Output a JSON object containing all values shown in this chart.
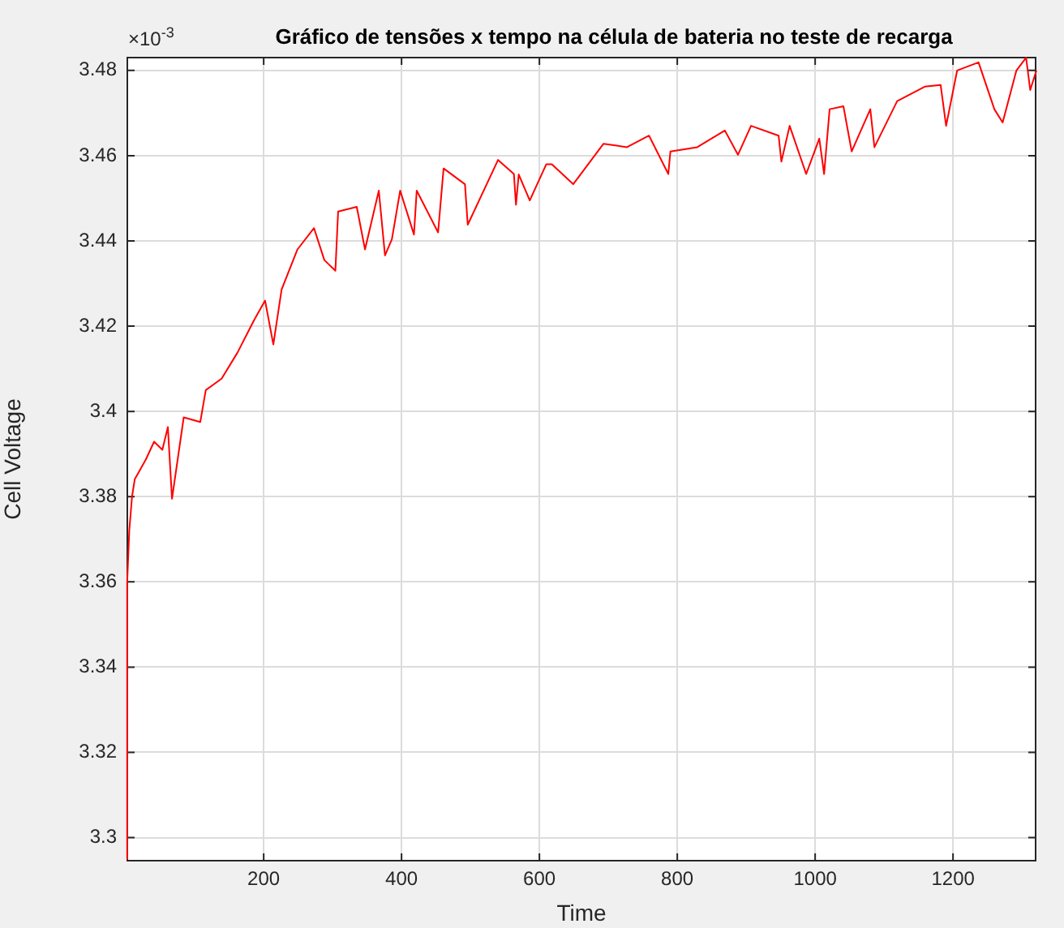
{
  "chart_data": {
    "type": "line",
    "title": "Gráfico de tensões x tempo na célula de bateria no teste de recarga",
    "xlabel": "Time",
    "ylabel": "Cell Voltage",
    "annotations": [
      "×10$^{-3}$"
    ],
    "xlim": [
      1,
      1321
    ],
    "xticks": [
      200,
      400,
      600,
      800,
      1000,
      1200
    ],
    "ylim": [
      3.2944,
      3.4832
    ],
    "yticks": [
      3.3,
      3.32,
      3.34,
      3.36,
      3.38,
      3.4,
      3.42,
      3.44,
      3.46,
      3.48
    ],
    "grid": true,
    "marker": "none",
    "line_style": "solid",
    "series": [
      {
        "color": "#ff0000",
        "x": [
          1,
          2,
          5,
          9,
          13,
          29,
          41,
          53,
          61,
          67,
          84,
          108,
          116,
          139,
          162,
          186,
          202,
          214,
          226,
          249,
          273,
          288,
          304,
          308,
          335,
          347,
          367,
          376,
          386,
          398,
          418,
          422,
          453,
          461,
          492,
          496,
          540,
          563,
          566,
          570,
          586,
          610,
          618,
          649,
          693,
          727,
          759,
          787,
          790,
          829,
          869,
          888,
          907,
          947,
          951,
          963,
          987,
          1006,
          1013,
          1021,
          1041,
          1053,
          1080,
          1086,
          1119,
          1159,
          1182,
          1190,
          1206,
          1237,
          1260,
          1272,
          1292,
          1306,
          1312,
          1321
        ],
        "values": [
          3.295,
          3.36,
          3.372,
          3.38,
          3.3841,
          3.3887,
          3.3929,
          3.391,
          3.3963,
          3.3795,
          3.3986,
          3.3975,
          3.405,
          3.4077,
          3.4138,
          3.4214,
          3.426,
          3.4157,
          3.4286,
          3.438,
          3.443,
          3.4355,
          3.433,
          3.4469,
          3.448,
          3.438,
          3.4518,
          3.4366,
          3.4404,
          3.4518,
          3.4415,
          3.4518,
          3.442,
          3.457,
          3.4533,
          3.4438,
          3.459,
          3.4557,
          3.4485,
          3.4556,
          3.4495,
          3.458,
          3.458,
          3.4533,
          3.4628,
          3.462,
          3.4647,
          3.4557,
          3.461,
          3.462,
          3.4659,
          3.4602,
          3.467,
          3.4647,
          3.4586,
          3.467,
          3.4557,
          3.464,
          3.4557,
          3.4709,
          3.4716,
          3.461,
          3.4709,
          3.462,
          3.4728,
          3.4762,
          3.4766,
          3.467,
          3.48,
          3.4819,
          3.4709,
          3.4678,
          3.48,
          3.483,
          3.4754,
          3.48
        ]
      }
    ]
  }
}
